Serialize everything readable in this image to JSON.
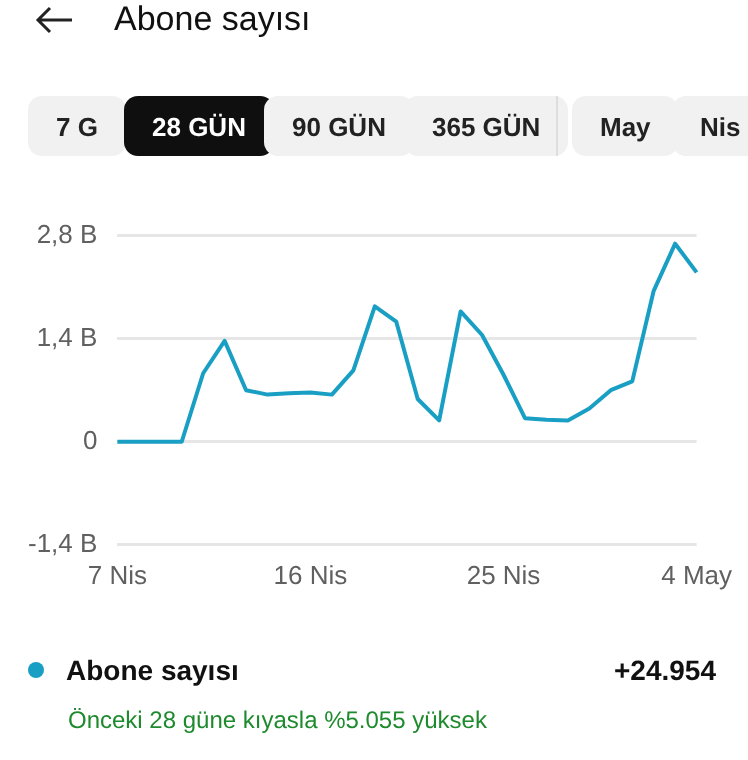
{
  "chart_data": {
    "type": "line",
    "title": "Abone sayısı",
    "categories": [
      "7 Nis",
      null,
      null,
      null,
      null,
      null,
      null,
      null,
      null,
      "16 Nis",
      null,
      null,
      null,
      null,
      null,
      null,
      null,
      null,
      "25 Nis",
      null,
      null,
      null,
      null,
      null,
      null,
      null,
      null,
      "4 May"
    ],
    "series": [
      {
        "name": "Abone sayısı",
        "color": "#1a9fc4",
        "values": [
          0,
          0,
          0,
          0,
          0.93,
          1.37,
          0.7,
          0.64,
          0.66,
          0.67,
          0.64,
          0.97,
          1.84,
          1.63,
          0.58,
          0.29,
          1.77,
          1.45,
          0.91,
          0.32,
          0.3,
          0.29,
          0.45,
          0.7,
          0.82,
          2.05,
          2.69,
          2.3
        ]
      }
    ],
    "ylim": [
      -1.4,
      2.8
    ],
    "yticks": [
      {
        "value": -1.4,
        "label": "-1,4 B"
      },
      0,
      {
        "value": 1.4,
        "label": "1,4 B"
      },
      {
        "value": 2.8,
        "label": "2,8 B"
      }
    ],
    "grid": "y",
    "legend": "bottom",
    "marker": "none",
    "line_style": "solid",
    "annotations": [
      "7 G",
      "28 GÜN",
      "90 GÜN",
      "365 GÜN",
      "May",
      "Nis",
      "+24.954",
      "Önceki 28 güne kıyasla %5.055 yüksek"
    ]
  }
}
